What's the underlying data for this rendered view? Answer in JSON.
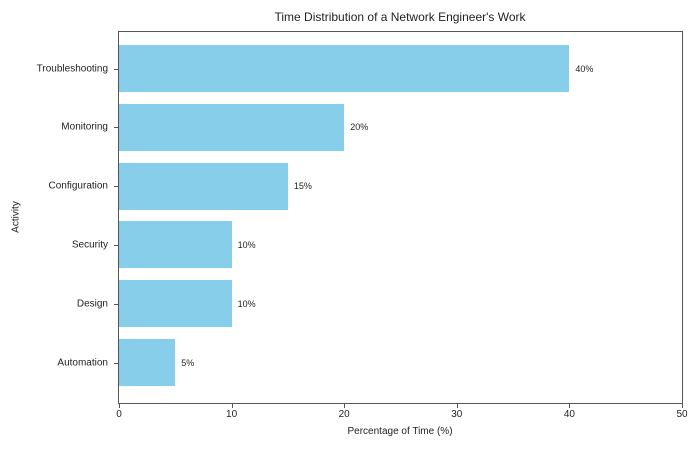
{
  "figure": {
    "background": "#ffffff"
  },
  "chart_data": {
    "type": "bar",
    "orientation": "horizontal",
    "title": "Time Distribution of a Network Engineer's Work",
    "xlabel": "Percentage of Time (%)",
    "ylabel": "Activity",
    "categories": [
      "Troubleshooting",
      "Monitoring",
      "Configuration",
      "Security",
      "Design",
      "Automation"
    ],
    "values": [
      40,
      20,
      15,
      10,
      10,
      5
    ],
    "value_labels": [
      "40%",
      "20%",
      "15%",
      "10%",
      "10%",
      "5%"
    ],
    "xlim": [
      0,
      50
    ],
    "xticks": [
      0,
      10,
      20,
      30,
      40,
      50
    ],
    "xtick_labels": [
      "0",
      "10",
      "20",
      "30",
      "40",
      "50"
    ],
    "bar_color": "#87CEEB",
    "spine_color": "#555555",
    "text_color": "#1f1f1f",
    "grid": false,
    "legend_position": "none"
  }
}
